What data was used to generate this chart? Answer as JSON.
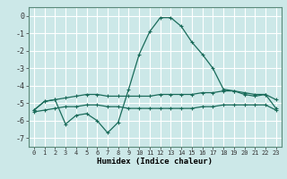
{
  "xlabel": "Humidex (Indice chaleur)",
  "background_color": "#cce8e8",
  "grid_color": "#ffffff",
  "line_color": "#1a6b5a",
  "x": [
    0,
    1,
    2,
    3,
    4,
    5,
    6,
    7,
    8,
    9,
    10,
    11,
    12,
    13,
    14,
    15,
    16,
    17,
    18,
    19,
    20,
    21,
    22,
    23
  ],
  "line1": [
    -5.4,
    -4.9,
    -4.8,
    -6.2,
    -5.7,
    -5.6,
    -6.0,
    -6.7,
    -6.1,
    -4.2,
    -2.2,
    -0.9,
    -0.1,
    -0.1,
    -0.6,
    -1.5,
    -2.2,
    -3.0,
    -4.2,
    -4.3,
    -4.5,
    -4.6,
    -4.5,
    -5.3
  ],
  "line2": [
    -5.4,
    -4.9,
    -4.8,
    -4.7,
    -4.6,
    -4.5,
    -4.5,
    -4.6,
    -4.6,
    -4.6,
    -4.6,
    -4.6,
    -4.5,
    -4.5,
    -4.5,
    -4.5,
    -4.4,
    -4.4,
    -4.3,
    -4.3,
    -4.4,
    -4.5,
    -4.5,
    -4.8
  ],
  "line3": [
    -5.5,
    -5.4,
    -5.3,
    -5.2,
    -5.2,
    -5.1,
    -5.1,
    -5.2,
    -5.2,
    -5.3,
    -5.3,
    -5.3,
    -5.3,
    -5.3,
    -5.3,
    -5.3,
    -5.2,
    -5.2,
    -5.1,
    -5.1,
    -5.1,
    -5.1,
    -5.1,
    -5.4
  ],
  "ylim": [
    -7.5,
    0.5
  ],
  "yticks": [
    0,
    -1,
    -2,
    -3,
    -4,
    -5,
    -6,
    -7
  ],
  "xlim": [
    -0.5,
    23.5
  ],
  "xtick_labels": [
    "0",
    "1",
    "2",
    "3",
    "4",
    "5",
    "6",
    "7",
    "8",
    "9",
    "10",
    "11",
    "12",
    "13",
    "14",
    "15",
    "16",
    "17",
    "18",
    "19",
    "20",
    "21",
    "22",
    "23"
  ]
}
